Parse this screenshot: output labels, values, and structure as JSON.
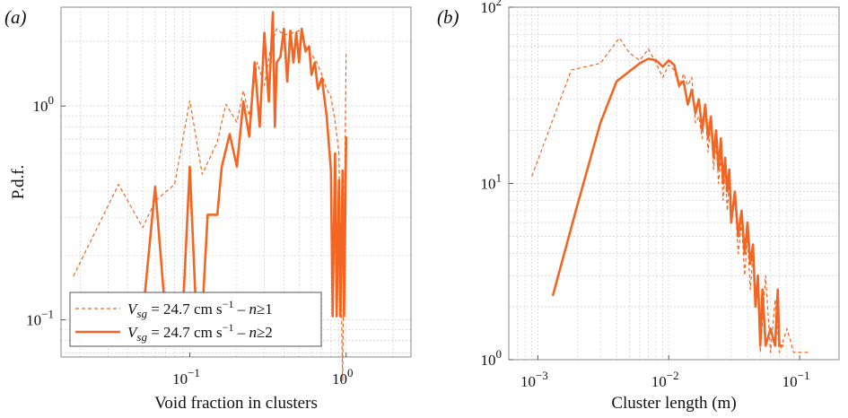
{
  "colors": {
    "series": "#f26522",
    "text": "#111111"
  },
  "chart_data": [
    {
      "type": "line",
      "panel_label": "(a)",
      "xlabel": "Void fraction in clusters",
      "ylabel": "P.d.f.",
      "xscale": "log",
      "yscale": "log",
      "xlim": [
        0.015,
        2.6
      ],
      "ylim": [
        0.067,
        2.9
      ],
      "grid": true,
      "legend_position": "bottom-left",
      "x_ticks": [
        {
          "value": 0.1,
          "base": "10",
          "exp": "−1"
        },
        {
          "value": 1,
          "base": "10",
          "exp": "0"
        }
      ],
      "y_ticks": [
        {
          "value": 0.1,
          "base": "10",
          "exp": "−1"
        },
        {
          "value": 1,
          "base": "10",
          "exp": "0"
        }
      ],
      "legend": [
        {
          "series_index": 0,
          "v": "V",
          "sub": "sg",
          "eq": " = 24.7 cm s",
          "sup": "−1",
          "dash": " – ",
          "n": "n",
          "cond": "≥1"
        },
        {
          "series_index": 1,
          "v": "V",
          "sub": "sg",
          "eq": " = 24.7 cm s",
          "sup": "−1",
          "dash": " – ",
          "n": "n",
          "cond": "≥2"
        }
      ],
      "series": [
        {
          "style": "dashed",
          "x": [
            0.018,
            0.035,
            0.05,
            0.06,
            0.08,
            0.1,
            0.12,
            0.15,
            0.17,
            0.2,
            0.22,
            0.24,
            0.27,
            0.3,
            0.33,
            0.36,
            0.4,
            0.45,
            0.5,
            0.55,
            0.6,
            0.65,
            0.7,
            0.75,
            0.8,
            0.85,
            0.9,
            0.95,
            1.0
          ],
          "y": [
            0.16,
            0.43,
            0.27,
            0.36,
            0.43,
            1.06,
            0.48,
            0.68,
            1.02,
            0.84,
            1.18,
            0.9,
            1.6,
            1.25,
            1.9,
            2.3,
            2.15,
            2.2,
            2.25,
            1.9,
            1.75,
            1.6,
            1.4,
            1.2,
            1.1,
            0.85,
            0.6,
            0.052,
            1.75
          ]
        },
        {
          "style": "solid",
          "x": [
            0.025,
            0.05,
            0.06,
            0.07,
            0.08,
            0.09,
            0.1,
            0.11,
            0.12,
            0.13,
            0.15,
            0.16,
            0.18,
            0.2,
            0.22,
            0.24,
            0.26,
            0.28,
            0.3,
            0.32,
            0.34,
            0.35,
            0.36,
            0.38,
            0.4,
            0.42,
            0.44,
            0.46,
            0.48,
            0.5,
            0.52,
            0.55,
            0.58,
            0.6,
            0.63,
            0.66,
            0.7,
            0.75,
            0.8,
            0.82,
            0.85,
            0.87,
            0.9,
            0.92,
            0.95,
            0.97,
            1.0
          ],
          "y": [
            0.104,
            0.104,
            0.42,
            0.104,
            0.104,
            0.104,
            0.52,
            0.104,
            0.104,
            0.31,
            0.31,
            0.52,
            0.74,
            0.52,
            1.05,
            0.72,
            1.6,
            0.8,
            2.2,
            1.05,
            2.75,
            0.8,
            1.6,
            1.7,
            2.3,
            1.3,
            2.25,
            1.6,
            2.2,
            1.6,
            2.3,
            1.8,
            1.9,
            1.4,
            1.6,
            1.2,
            1.35,
            0.9,
            0.5,
            0.104,
            0.6,
            0.104,
            0.45,
            0.104,
            0.5,
            0.104,
            0.72
          ]
        }
      ]
    },
    {
      "type": "line",
      "panel_label": "(b)",
      "xlabel": "Cluster length (m)",
      "ylabel": "",
      "xscale": "log",
      "yscale": "log",
      "xlim": [
        0.0006,
        0.2
      ],
      "ylim": [
        1,
        100
      ],
      "grid": true,
      "x_ticks": [
        {
          "value": 0.001,
          "base": "10",
          "exp": "−3"
        },
        {
          "value": 0.01,
          "base": "10",
          "exp": "−2"
        },
        {
          "value": 0.1,
          "base": "10",
          "exp": "−1"
        }
      ],
      "y_ticks": [
        {
          "value": 1,
          "base": "10",
          "exp": "0"
        },
        {
          "value": 10,
          "base": "10",
          "exp": "1"
        },
        {
          "value": 100,
          "base": "10",
          "exp": "2"
        }
      ],
      "series": [
        {
          "style": "dashed",
          "x": [
            0.0009,
            0.0018,
            0.003,
            0.0042,
            0.005,
            0.006,
            0.007,
            0.008,
            0.009,
            0.01,
            0.011,
            0.012,
            0.013,
            0.014,
            0.015,
            0.016,
            0.017,
            0.018,
            0.019,
            0.02,
            0.021,
            0.022,
            0.023,
            0.024,
            0.025,
            0.026,
            0.027,
            0.028,
            0.029,
            0.03,
            0.032,
            0.034,
            0.036,
            0.038,
            0.04,
            0.042,
            0.044,
            0.046,
            0.048,
            0.05,
            0.055,
            0.06,
            0.065,
            0.07,
            0.08,
            0.09,
            0.11,
            0.12
          ],
          "y": [
            11,
            44,
            48,
            67,
            55,
            50,
            58,
            48,
            40,
            47,
            44,
            35,
            42,
            36,
            40,
            22,
            24,
            18,
            26,
            15,
            22,
            12,
            17,
            10,
            14,
            8,
            12,
            7,
            10,
            6,
            8,
            4,
            6,
            3,
            5,
            2.5,
            4,
            2,
            3,
            1.1,
            3,
            1.1,
            2.2,
            1.1,
            1.5,
            1.1,
            1.1,
            1.1
          ]
        },
        {
          "style": "solid",
          "x": [
            0.0013,
            0.002,
            0.003,
            0.004,
            0.006,
            0.007,
            0.008,
            0.009,
            0.01,
            0.011,
            0.012,
            0.013,
            0.014,
            0.015,
            0.016,
            0.017,
            0.018,
            0.019,
            0.02,
            0.021,
            0.022,
            0.023,
            0.024,
            0.025,
            0.026,
            0.027,
            0.028,
            0.029,
            0.03,
            0.032,
            0.034,
            0.036,
            0.038,
            0.04,
            0.042,
            0.044,
            0.046,
            0.048,
            0.05,
            0.052,
            0.055,
            0.06,
            0.065,
            0.068,
            0.07,
            0.075
          ],
          "y": [
            2.3,
            7.5,
            22,
            38,
            48,
            51,
            50,
            46,
            50,
            47,
            36,
            38,
            28,
            34,
            25,
            30,
            20,
            28,
            18,
            24,
            14,
            20,
            12,
            18,
            10,
            14,
            9,
            12,
            6,
            9,
            5,
            7,
            4,
            6,
            3.5,
            4.5,
            2,
            3,
            1.2,
            2.5,
            1.2,
            1.5,
            1.2,
            2.5,
            1.2,
            1.2
          ]
        }
      ]
    }
  ]
}
